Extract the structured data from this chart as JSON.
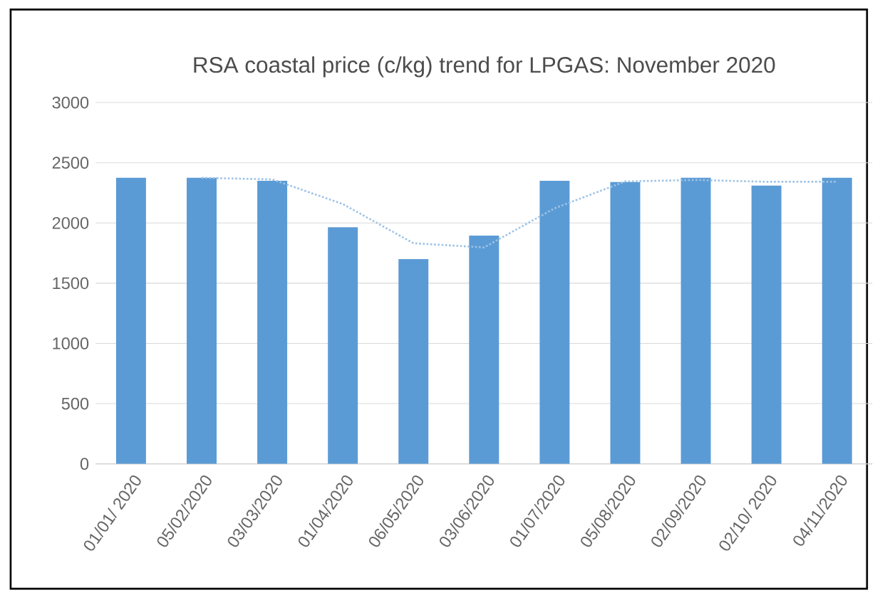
{
  "chart_data": {
    "type": "bar",
    "title": "RSA coastal price (c/kg) trend for LPGAS: November 2020",
    "categories": [
      "01/01/ 2020",
      "05/02/2020",
      "03/03/2020",
      "01/04/2020",
      "06/05/2020",
      "03/06/2020",
      "01/07/2020",
      "05/08/2020",
      "02/09/2020",
      "02/10/ 2020",
      "04/11/2020"
    ],
    "series": [
      {
        "color": "#5b9bd5",
        "values": [
          2375,
          2375,
          2350,
          1965,
          1700,
          1895,
          2350,
          2340,
          2375,
          2310,
          2375
        ]
      },
      {
        "type": "line",
        "color": "#9dc3e6",
        "line_style": "dotted",
        "values": [
          null,
          2375,
          2362,
          2157,
          1832,
          1797,
          2122,
          2345,
          2357,
          2342,
          2342
        ]
      }
    ],
    "ylim": [
      0,
      3000
    ],
    "yticks": [
      0,
      500,
      1000,
      1500,
      2000,
      2500,
      3000
    ],
    "grid": "y"
  }
}
